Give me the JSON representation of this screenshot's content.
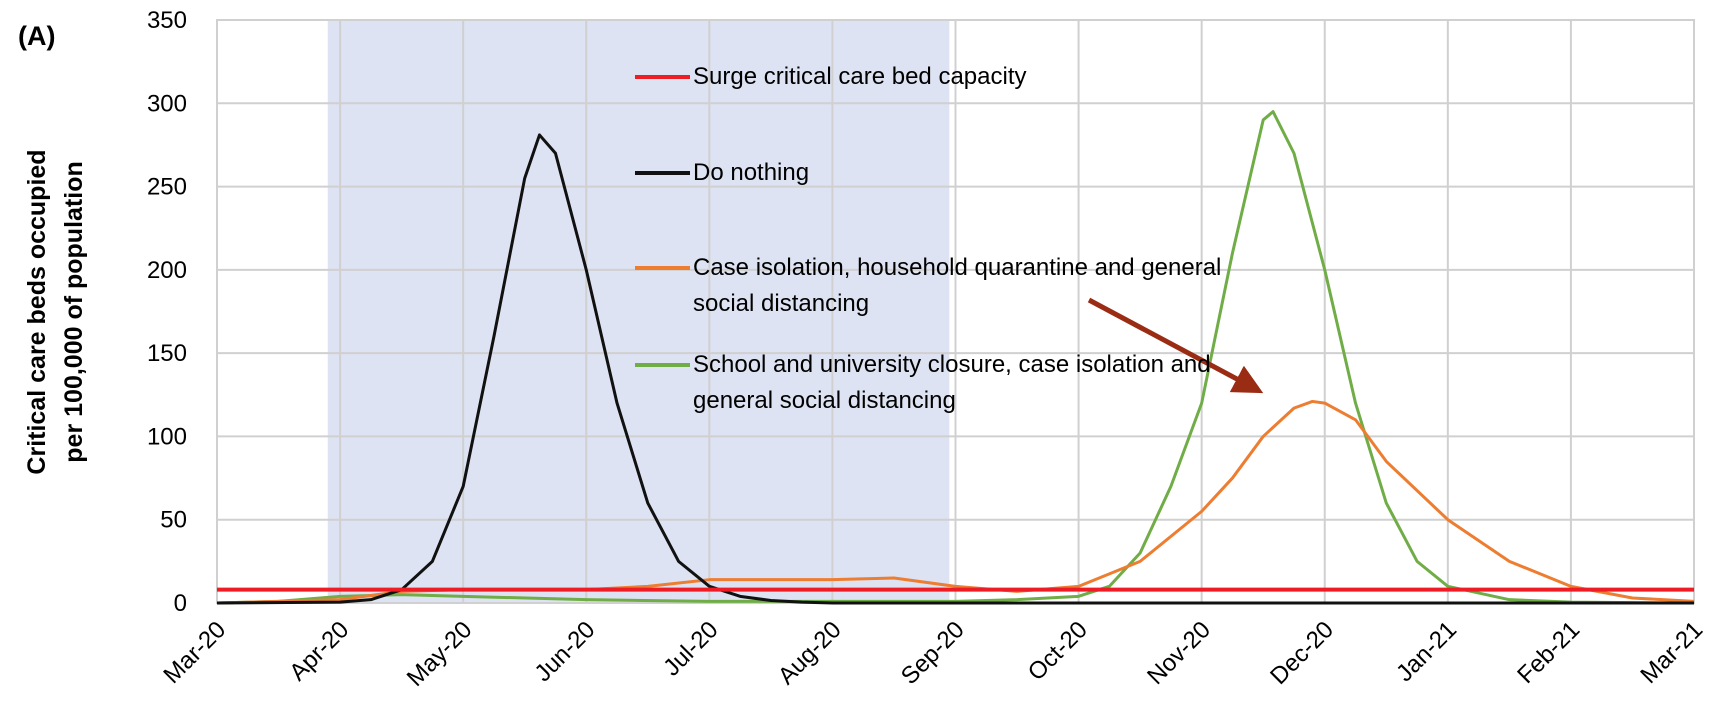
{
  "chart_data": {
    "type": "line",
    "panel_label": "(A)",
    "ylabel": [
      "Critical care beds occupied",
      "per 100,000 of population"
    ],
    "xlim": [
      0,
      12
    ],
    "xticks": [
      {
        "value": 0,
        "label": "Mar-20"
      },
      {
        "value": 1,
        "label": "Apr-20"
      },
      {
        "value": 2,
        "label": "May-20"
      },
      {
        "value": 3,
        "label": "Jun-20"
      },
      {
        "value": 4,
        "label": "Jul-20"
      },
      {
        "value": 5,
        "label": "Aug-20"
      },
      {
        "value": 6,
        "label": "Sep-20"
      },
      {
        "value": 7,
        "label": "Oct-20"
      },
      {
        "value": 8,
        "label": "Nov-20"
      },
      {
        "value": 9,
        "label": "Dec-20"
      },
      {
        "value": 10,
        "label": "Jan-21"
      },
      {
        "value": 11,
        "label": "Feb-21"
      },
      {
        "value": 12,
        "label": "Mar-21"
      }
    ],
    "ylim": [
      0,
      350
    ],
    "yticks": [
      0,
      50,
      100,
      150,
      200,
      250,
      300,
      350
    ],
    "grid": true,
    "shaded_region": [
      0.9,
      5.95
    ],
    "shade_color": "#dde3f2",
    "series": [
      {
        "name": "Surge critical care bed capacity",
        "color": "#ee1c25",
        "width": 4,
        "x": [
          0,
          12
        ],
        "values": [
          8,
          8
        ]
      },
      {
        "name": "Do nothing",
        "color": "#111111",
        "width": 3,
        "x": [
          0,
          1,
          1.25,
          1.5,
          1.75,
          2,
          2.25,
          2.5,
          2.62,
          2.75,
          3,
          3.25,
          3.5,
          3.75,
          4,
          4.25,
          4.5,
          4.75,
          5,
          12
        ],
        "values": [
          0,
          0.5,
          2,
          8,
          25,
          70,
          160,
          255,
          281,
          270,
          200,
          120,
          60,
          25,
          10,
          4,
          1.5,
          0.5,
          0,
          0
        ]
      },
      {
        "name": "Case isolation, household quarantine and general social distancing",
        "color": "#ed7d31",
        "width": 3,
        "x": [
          0,
          1,
          1.5,
          2,
          3,
          3.5,
          4,
          5,
          5.5,
          6,
          6.5,
          7,
          7.5,
          8,
          8.25,
          8.5,
          8.75,
          8.9,
          9,
          9.25,
          9.5,
          10,
          10.5,
          11,
          11.5,
          12
        ],
        "values": [
          0,
          2,
          7,
          8,
          8,
          10,
          14,
          14,
          15,
          10,
          7,
          10,
          25,
          55,
          75,
          100,
          117,
          121,
          120,
          110,
          85,
          50,
          25,
          10,
          3,
          1
        ]
      },
      {
        "name": "School and university closure, case isolation and general social distancing",
        "color": "#70ad47",
        "width": 3,
        "x": [
          0,
          0.5,
          1,
          1.5,
          2,
          3,
          4,
          5,
          6,
          6.5,
          7,
          7.25,
          7.5,
          7.75,
          8,
          8.25,
          8.5,
          8.58,
          8.75,
          9,
          9.25,
          9.5,
          9.75,
          10,
          10.5,
          11,
          12
        ],
        "values": [
          0,
          1,
          4,
          5,
          4,
          2,
          1,
          1,
          1,
          2,
          4,
          10,
          30,
          70,
          120,
          210,
          290,
          295,
          270,
          200,
          120,
          60,
          25,
          10,
          2,
          0.5,
          0
        ]
      }
    ]
  }
}
